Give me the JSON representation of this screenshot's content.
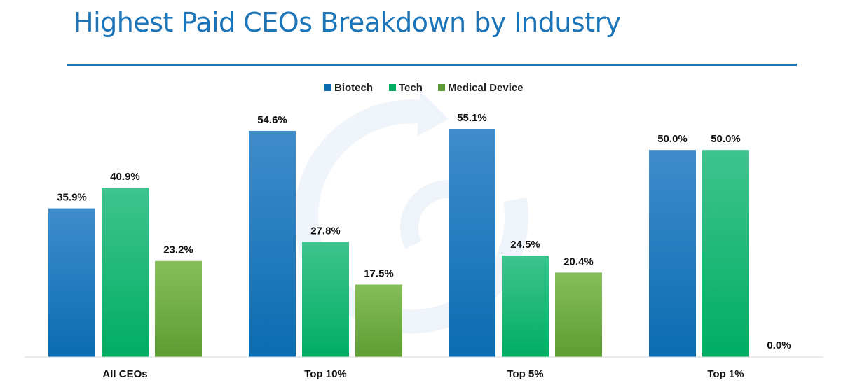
{
  "title": "Highest Paid CEOs Breakdown by Industry",
  "chart_data": {
    "type": "bar",
    "title": "Highest Paid CEOs Breakdown by Industry",
    "categories": [
      "All CEOs",
      "Top 10%",
      "Top 5%",
      "Top 1%"
    ],
    "series": [
      {
        "name": "Biotech",
        "values": [
          35.9,
          54.6,
          55.1,
          50.0
        ],
        "labels": [
          "35.9%",
          "54.6%",
          "55.1%",
          "50.0%"
        ],
        "color_top": "#3f8ccc",
        "color_bottom": "#0a6cb0"
      },
      {
        "name": "Tech",
        "values": [
          40.9,
          27.8,
          24.5,
          50.0
        ],
        "labels": [
          "40.9%",
          "27.8%",
          "24.5%",
          "50.0%"
        ],
        "color_top": "#3fc48f",
        "color_bottom": "#00ad62"
      },
      {
        "name": "Medical Device",
        "values": [
          23.2,
          17.5,
          20.4,
          0.0
        ],
        "labels": [
          "23.2%",
          "17.5%",
          "20.4%",
          "0.0%"
        ],
        "color_top": "#86be5a",
        "color_bottom": "#5d9d32"
      }
    ],
    "ylim": [
      0,
      60
    ],
    "xlabel": "",
    "ylabel": "",
    "grid": false,
    "legend": "top-center"
  }
}
